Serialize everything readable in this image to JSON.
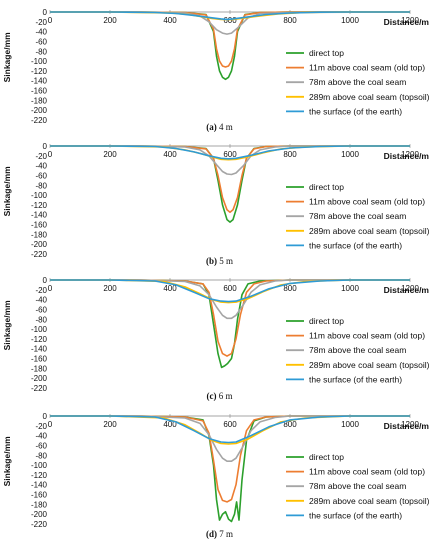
{
  "chart_data": [
    {
      "type": "line",
      "caption_letter": "(a)",
      "caption_text": " 4 m",
      "xlabel": "Distance/m",
      "ylabel": "Sinkage/mm",
      "xlim": [
        0,
        1200
      ],
      "ylim": [
        -220,
        0
      ],
      "xticks": [
        0,
        200,
        400,
        600,
        800,
        1000,
        1200
      ],
      "yticks": [
        0,
        -20,
        -40,
        -60,
        -80,
        -100,
        -120,
        -140,
        -160,
        -180,
        -200,
        -220
      ],
      "legend_position": "right",
      "series": [
        {
          "name": "direct top",
          "color": "#2ca02c",
          "x": [
            0,
            300,
            450,
            520,
            545,
            555,
            565,
            575,
            585,
            595,
            605,
            615,
            625,
            650,
            700,
            800,
            1200
          ],
          "y": [
            0,
            0,
            -1,
            -5,
            -40,
            -90,
            -120,
            -133,
            -137,
            -133,
            -120,
            -90,
            -40,
            -5,
            -1,
            0,
            0
          ]
        },
        {
          "name": "11m above coal seam (old top)",
          "color": "#ed7d31",
          "x": [
            0,
            300,
            450,
            520,
            545,
            555,
            565,
            575,
            585,
            595,
            605,
            615,
            625,
            650,
            700,
            800,
            1200
          ],
          "y": [
            0,
            0,
            -1,
            -6,
            -35,
            -75,
            -100,
            -110,
            -112,
            -110,
            -100,
            -75,
            -35,
            -6,
            -1,
            0,
            0
          ]
        },
        {
          "name": "78m above the coal seam",
          "color": "#a5a5a5",
          "x": [
            0,
            300,
            450,
            500,
            530,
            555,
            575,
            590,
            605,
            630,
            660,
            700,
            800,
            1200
          ],
          "y": [
            0,
            0,
            -2,
            -8,
            -20,
            -36,
            -43,
            -45,
            -43,
            -30,
            -12,
            -3,
            -1,
            0
          ]
        },
        {
          "name": "289m above coal seam (topsoil)",
          "color": "#ffc000",
          "x": [
            0,
            200,
            400,
            460,
            500,
            540,
            570,
            590,
            610,
            650,
            700,
            760,
            850,
            1000,
            1200
          ],
          "y": [
            0,
            0,
            -2,
            -5,
            -9,
            -13,
            -15,
            -15.5,
            -15,
            -12,
            -8,
            -4,
            -1,
            0,
            0
          ]
        },
        {
          "name": "the surface (of the earth)",
          "color": "#2e9bd6",
          "x": [
            0,
            200,
            350,
            420,
            480,
            530,
            570,
            590,
            610,
            660,
            720,
            800,
            900,
            1000,
            1200
          ],
          "y": [
            0,
            0,
            -1,
            -3,
            -7,
            -11,
            -14,
            -15,
            -14,
            -10,
            -5,
            -2,
            -0.5,
            0,
            0
          ]
        }
      ]
    },
    {
      "type": "line",
      "caption_letter": "(b)",
      "caption_text": " 5 m",
      "xlabel": "Distance/m",
      "ylabel": "Sinkage/mm",
      "xlim": [
        0,
        1200
      ],
      "ylim": [
        -220,
        0
      ],
      "xticks": [
        0,
        200,
        400,
        600,
        800,
        1000,
        1200
      ],
      "yticks": [
        0,
        -20,
        -40,
        -60,
        -80,
        -100,
        -120,
        -140,
        -160,
        -180,
        -200,
        -220
      ],
      "legend_position": "right",
      "series": [
        {
          "name": "direct top",
          "color": "#2ca02c",
          "x": [
            0,
            300,
            450,
            520,
            545,
            560,
            575,
            590,
            600,
            610,
            625,
            640,
            655,
            680,
            720,
            800,
            1200
          ],
          "y": [
            0,
            0,
            -1,
            -5,
            -25,
            -70,
            -120,
            -150,
            -155,
            -150,
            -120,
            -70,
            -25,
            -5,
            -1,
            0,
            0
          ]
        },
        {
          "name": "11m above coal seam (old top)",
          "color": "#ed7d31",
          "x": [
            0,
            300,
            450,
            520,
            545,
            560,
            575,
            590,
            600,
            610,
            625,
            640,
            655,
            680,
            720,
            800,
            1200
          ],
          "y": [
            0,
            0,
            -1,
            -6,
            -25,
            -60,
            -105,
            -130,
            -135,
            -130,
            -105,
            -60,
            -25,
            -6,
            -1,
            0,
            0
          ]
        },
        {
          "name": "78m above the coal seam",
          "color": "#a5a5a5",
          "x": [
            0,
            300,
            450,
            500,
            530,
            555,
            575,
            590,
            605,
            620,
            645,
            670,
            700,
            750,
            800,
            1200
          ],
          "y": [
            0,
            0,
            -2,
            -8,
            -20,
            -38,
            -52,
            -57,
            -58,
            -55,
            -40,
            -20,
            -8,
            -2,
            0,
            0
          ]
        },
        {
          "name": "289m above coal seam (topsoil)",
          "color": "#ffc000",
          "x": [
            0,
            200,
            380,
            450,
            500,
            540,
            570,
            595,
            620,
            660,
            710,
            770,
            850,
            1000,
            1200
          ],
          "y": [
            0,
            0,
            -2,
            -8,
            -15,
            -22,
            -27,
            -28,
            -27,
            -22,
            -14,
            -6,
            -2,
            0,
            0
          ]
        },
        {
          "name": "the surface (of the earth)",
          "color": "#2e9bd6",
          "x": [
            0,
            200,
            350,
            420,
            480,
            530,
            570,
            595,
            620,
            670,
            730,
            800,
            900,
            1000,
            1200
          ],
          "y": [
            0,
            0,
            -1,
            -5,
            -12,
            -20,
            -25,
            -26,
            -25,
            -19,
            -10,
            -4,
            -1,
            0,
            0
          ]
        }
      ]
    },
    {
      "type": "line",
      "caption_letter": "(c)",
      "caption_text": " 6 m",
      "xlabel": "Distance/m",
      "ylabel": "Sinkage/mm",
      "xlim": [
        0,
        1200
      ],
      "ylim": [
        -220,
        0
      ],
      "xticks": [
        0,
        200,
        400,
        600,
        800,
        1000,
        1200
      ],
      "yticks": [
        0,
        -20,
        -40,
        -60,
        -80,
        -100,
        -120,
        -140,
        -160,
        -180,
        -200,
        -220
      ],
      "legend_position": "right",
      "series": [
        {
          "name": "direct top",
          "color": "#2ca02c",
          "x": [
            0,
            300,
            450,
            510,
            530,
            545,
            560,
            572,
            582,
            592,
            605,
            615,
            625,
            640,
            660,
            700,
            800,
            1200
          ],
          "y": [
            0,
            0,
            -2,
            -8,
            -30,
            -90,
            -150,
            -178,
            -175,
            -170,
            -160,
            -130,
            -80,
            -30,
            -8,
            -2,
            0,
            0
          ]
        },
        {
          "name": "11m above coal seam (old top)",
          "color": "#ed7d31",
          "x": [
            0,
            300,
            450,
            510,
            530,
            545,
            560,
            575,
            590,
            605,
            620,
            635,
            655,
            680,
            720,
            800,
            1200
          ],
          "y": [
            0,
            0,
            -2,
            -8,
            -25,
            -70,
            -125,
            -150,
            -155,
            -150,
            -120,
            -70,
            -25,
            -8,
            -2,
            0,
            0
          ]
        },
        {
          "name": "78m above the coal seam",
          "color": "#a5a5a5",
          "x": [
            0,
            300,
            450,
            500,
            530,
            555,
            575,
            590,
            605,
            620,
            645,
            670,
            700,
            750,
            800,
            1200
          ],
          "y": [
            0,
            0,
            -3,
            -12,
            -30,
            -55,
            -72,
            -78,
            -78,
            -72,
            -50,
            -25,
            -10,
            -2,
            0,
            0
          ]
        },
        {
          "name": "289m above coal seam (topsoil)",
          "color": "#ffc000",
          "x": [
            0,
            200,
            380,
            450,
            500,
            540,
            570,
            595,
            620,
            660,
            710,
            770,
            850,
            1000,
            1200
          ],
          "y": [
            0,
            0,
            -3,
            -14,
            -28,
            -40,
            -45,
            -46,
            -45,
            -38,
            -24,
            -10,
            -3,
            0,
            0
          ]
        },
        {
          "name": "the surface (of the earth)",
          "color": "#2e9bd6",
          "x": [
            0,
            200,
            350,
            420,
            480,
            530,
            570,
            595,
            620,
            670,
            730,
            800,
            900,
            1000,
            1200
          ],
          "y": [
            0,
            0,
            -2,
            -10,
            -25,
            -38,
            -43,
            -44,
            -43,
            -33,
            -18,
            -7,
            -2,
            0,
            0
          ]
        }
      ]
    },
    {
      "type": "line",
      "caption_letter": "(d)",
      "caption_text": " 7 m",
      "xlabel": "Distance/m",
      "ylabel": "Sinkage/mm",
      "xlim": [
        0,
        1200
      ],
      "ylim": [
        -220,
        0
      ],
      "xticks": [
        0,
        200,
        400,
        600,
        800,
        1000,
        1200
      ],
      "yticks": [
        0,
        -20,
        -40,
        -60,
        -80,
        -100,
        -120,
        -140,
        -160,
        -180,
        -200,
        -220
      ],
      "legend_position": "right",
      "series": [
        {
          "name": "direct top",
          "color": "#2ca02c",
          "x": [
            0,
            300,
            450,
            510,
            530,
            545,
            555,
            565,
            575,
            585,
            595,
            605,
            615,
            622,
            630,
            640,
            655,
            680,
            720,
            800,
            1200
          ],
          "y": [
            0,
            0,
            -2,
            -8,
            -40,
            -100,
            -170,
            -212,
            -200,
            -195,
            -210,
            -215,
            -200,
            -175,
            -212,
            -130,
            -50,
            -10,
            -2,
            0,
            0
          ]
        },
        {
          "name": "11m above coal seam (old top)",
          "color": "#ed7d31",
          "x": [
            0,
            300,
            450,
            510,
            530,
            545,
            560,
            575,
            590,
            605,
            620,
            635,
            655,
            680,
            720,
            800,
            1200
          ],
          "y": [
            0,
            0,
            -2,
            -10,
            -35,
            -90,
            -150,
            -172,
            -175,
            -170,
            -140,
            -80,
            -30,
            -8,
            -2,
            0,
            0
          ]
        },
        {
          "name": "78m above the coal seam",
          "color": "#a5a5a5",
          "x": [
            0,
            300,
            450,
            500,
            530,
            555,
            575,
            590,
            605,
            620,
            645,
            670,
            700,
            750,
            800,
            1200
          ],
          "y": [
            0,
            0,
            -4,
            -15,
            -38,
            -68,
            -86,
            -92,
            -92,
            -86,
            -60,
            -30,
            -12,
            -3,
            0,
            0
          ]
        },
        {
          "name": "289m above coal seam (topsoil)",
          "color": "#ffc000",
          "x": [
            0,
            200,
            380,
            450,
            500,
            540,
            570,
            595,
            620,
            660,
            710,
            770,
            850,
            1000,
            1200
          ],
          "y": [
            0,
            0,
            -4,
            -18,
            -35,
            -50,
            -56,
            -57,
            -56,
            -47,
            -30,
            -12,
            -4,
            0,
            0
          ]
        },
        {
          "name": "the surface (of the earth)",
          "color": "#2e9bd6",
          "x": [
            0,
            200,
            350,
            420,
            480,
            530,
            570,
            595,
            620,
            670,
            730,
            800,
            900,
            1000,
            1200
          ],
          "y": [
            0,
            0,
            -2,
            -12,
            -30,
            -46,
            -53,
            -54,
            -53,
            -40,
            -22,
            -8,
            -2,
            0,
            0
          ]
        }
      ]
    }
  ]
}
